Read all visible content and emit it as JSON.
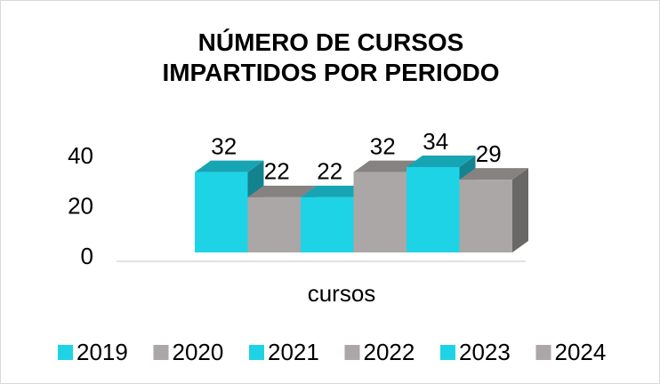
{
  "chart_data": {
    "type": "bar3d",
    "title": "NÚMERO DE CURSOS IMPARTIDOS POR PERIODO",
    "categories": [
      "cursos"
    ],
    "series": [
      {
        "name": "2019",
        "color": "#1fd3e6",
        "values": [
          32
        ]
      },
      {
        "name": "2020",
        "color": "#aaa7a6",
        "values": [
          22
        ]
      },
      {
        "name": "2021",
        "color": "#1fd3e6",
        "values": [
          22
        ]
      },
      {
        "name": "2022",
        "color": "#aaa7a6",
        "values": [
          32
        ]
      },
      {
        "name": "2023",
        "color": "#1fd3e6",
        "values": [
          34
        ]
      },
      {
        "name": "2024",
        "color": "#aaa7a6",
        "values": [
          29
        ]
      }
    ],
    "ylim": [
      0,
      40
    ],
    "yticks": [
      0,
      20,
      40
    ],
    "legend": "bottom"
  }
}
